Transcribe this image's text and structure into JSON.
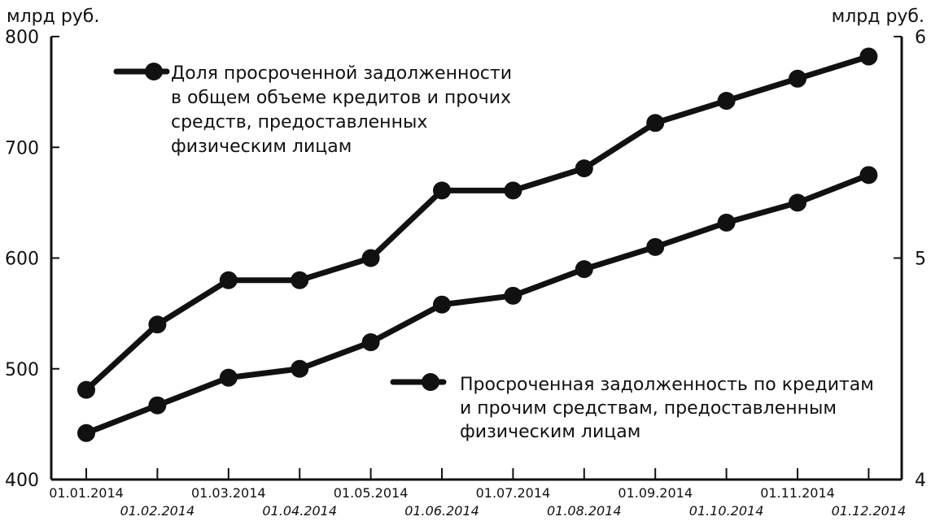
{
  "chart_data": {
    "type": "line",
    "left_axis_label": "млрд руб.",
    "right_axis_label": "млрд руб.",
    "left_ylim": [
      400,
      800
    ],
    "right_ylim": [
      4,
      6
    ],
    "left_ticks": [
      "800",
      "700",
      "600",
      "500",
      "400"
    ],
    "right_ticks": [
      "6",
      "5",
      "4"
    ],
    "categories": [
      "01.01.2014",
      "01.02.2014",
      "01.03.2014",
      "01.04.2014",
      "01.05.2014",
      "01.06.2014",
      "01.07.2014",
      "01.08.2014",
      "01.09.2014",
      "01.10.2014",
      "01.11.2014",
      "01.12.2014"
    ],
    "series": [
      {
        "name_lines": [
          "Доля просроченной задолженности",
          "в общем объеме кредитов и прочих",
          "средств, предоставленных",
          "физическим лицам"
        ],
        "axis": "left",
        "values": [
          481,
          540,
          580,
          580,
          600,
          661,
          661,
          681,
          722,
          742,
          762,
          782
        ]
      },
      {
        "name_lines": [
          "Просроченная задолженность по кредитам",
          "и прочим средствам, предоставленным",
          "физическим лицам"
        ],
        "axis": "left",
        "values": [
          442,
          467,
          492,
          500,
          524,
          558,
          566,
          590,
          610,
          632,
          650,
          675
        ]
      }
    ],
    "grid": false,
    "legend_placement": "inline"
  }
}
